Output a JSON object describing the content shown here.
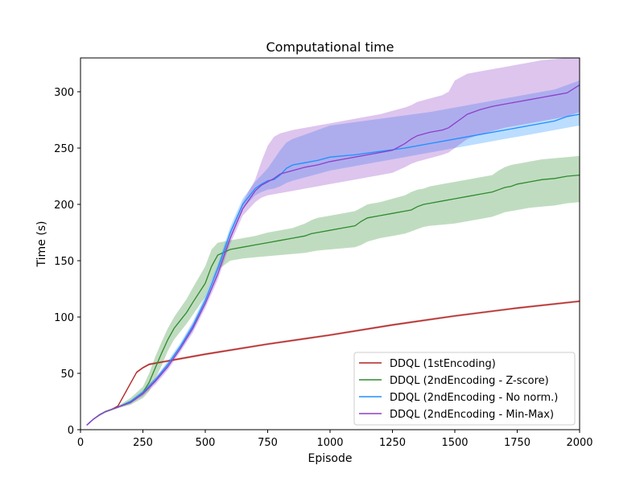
{
  "chart_data": {
    "type": "line",
    "title": "Computational time",
    "xlabel": "Episode",
    "ylabel": "Time (s)",
    "xlim": [
      0,
      2000
    ],
    "ylim": [
      0,
      330
    ],
    "xticks": [
      0,
      250,
      500,
      750,
      1000,
      1250,
      1500,
      1750,
      2000
    ],
    "yticks": [
      0,
      50,
      100,
      150,
      200,
      250,
      300
    ],
    "grid": false,
    "legend_position": "lower-right",
    "series": [
      {
        "name": "DDQL (1stEncoding)",
        "color": "#b22222",
        "x": [
          25,
          50,
          75,
          100,
          125,
          150,
          175,
          200,
          225,
          250,
          275,
          300,
          350,
          400,
          500,
          750,
          1000,
          1250,
          1500,
          1750,
          2000
        ],
        "y": [
          4,
          9,
          13,
          16,
          18,
          21,
          31,
          41,
          51,
          55,
          58,
          59,
          61,
          63,
          67,
          76,
          84,
          93,
          101,
          108,
          114
        ],
        "lower": [
          3.5,
          8.5,
          12.5,
          15.5,
          17.5,
          20.5,
          30,
          40,
          50,
          54,
          57,
          58,
          60,
          62,
          66,
          75,
          83,
          92,
          100,
          107,
          113
        ],
        "upper": [
          4.5,
          9.5,
          13.5,
          16.5,
          18.5,
          21.5,
          32,
          42,
          52,
          56,
          59,
          60,
          62,
          64,
          68,
          77,
          85,
          94,
          102,
          109,
          115
        ]
      },
      {
        "name": "DDQL (2ndEncoding - Z-score)",
        "color": "#2e8b2e",
        "x": [
          25,
          50,
          75,
          100,
          125,
          150,
          200,
          250,
          275,
          300,
          325,
          350,
          375,
          400,
          425,
          450,
          500,
          525,
          550,
          600,
          650,
          700,
          750,
          800,
          850,
          900,
          925,
          950,
          1000,
          1050,
          1100,
          1125,
          1150,
          1200,
          1250,
          1300,
          1325,
          1350,
          1375,
          1400,
          1450,
          1500,
          1550,
          1600,
          1650,
          1675,
          1700,
          1725,
          1750,
          1800,
          1850,
          1900,
          1950,
          2000
        ],
        "y": [
          4,
          9,
          13,
          16,
          18,
          20,
          25,
          33,
          42,
          55,
          68,
          80,
          90,
          97,
          104,
          113,
          130,
          145,
          155,
          160,
          162,
          164,
          166,
          168,
          170,
          172,
          174,
          175,
          177,
          179,
          181,
          185,
          188,
          190,
          192,
          194,
          195,
          198,
          200,
          201,
          203,
          205,
          207,
          209,
          211,
          213,
          215,
          216,
          218,
          220,
          222,
          223,
          225,
          226
        ],
        "lower": [
          3.5,
          8.5,
          12,
          15,
          17,
          19,
          22,
          28,
          34,
          45,
          57,
          70,
          80,
          87,
          94,
          102,
          118,
          132,
          142,
          150,
          152,
          153,
          154,
          155,
          156,
          157,
          158,
          159,
          160,
          161,
          162,
          164,
          167,
          170,
          172,
          174,
          176,
          178,
          180,
          181,
          182,
          183,
          185,
          187,
          189,
          191,
          193,
          194,
          195,
          197,
          198,
          199,
          201,
          202
        ],
        "upper": [
          4.5,
          9.5,
          14,
          17,
          19,
          21,
          28,
          38,
          50,
          65,
          78,
          90,
          100,
          108,
          116,
          126,
          145,
          160,
          166,
          168,
          170,
          172,
          175,
          177,
          179,
          183,
          186,
          188,
          190,
          192,
          194,
          197,
          200,
          202,
          205,
          208,
          211,
          213,
          214,
          216,
          218,
          220,
          222,
          224,
          226,
          230,
          233,
          235,
          236,
          238,
          240,
          241,
          242,
          243
        ]
      },
      {
        "name": "DDQL (2ndEncoding - No norm.)",
        "color": "#1e90ff",
        "x": [
          25,
          50,
          75,
          100,
          125,
          150,
          200,
          250,
          300,
          350,
          400,
          450,
          500,
          550,
          600,
          650,
          700,
          725,
          750,
          775,
          800,
          825,
          850,
          900,
          950,
          1000,
          1100,
          1200,
          1300,
          1400,
          1500,
          1600,
          1700,
          1800,
          1900,
          1950,
          2000
        ],
        "y": [
          4,
          9,
          13,
          16,
          18,
          20,
          25,
          33,
          44,
          58,
          74,
          92,
          115,
          143,
          175,
          200,
          214,
          218,
          221,
          222,
          226,
          232,
          235,
          237,
          239,
          242,
          244,
          247,
          250,
          254,
          258,
          262,
          266,
          270,
          274,
          278,
          280
        ],
        "lower": [
          3.5,
          8.5,
          12.5,
          15.5,
          17.5,
          19.5,
          24,
          31,
          42,
          55,
          71,
          88,
          111,
          139,
          171,
          196,
          208,
          211,
          213,
          214,
          216,
          219,
          221,
          224,
          227,
          230,
          234,
          238,
          242,
          246,
          250,
          254,
          258,
          262,
          266,
          268,
          270
        ],
        "upper": [
          4.5,
          9.5,
          13.5,
          16.5,
          18.5,
          20.5,
          26,
          35,
          46,
          61,
          77,
          96,
          119,
          147,
          180,
          205,
          220,
          226,
          232,
          240,
          248,
          255,
          258,
          262,
          266,
          270,
          273,
          276,
          279,
          282,
          286,
          290,
          294,
          298,
          302,
          306,
          310
        ]
      },
      {
        "name": "DDQL (2ndEncoding - Min-Max)",
        "color": "#8e3fc7",
        "x": [
          25,
          50,
          75,
          100,
          125,
          150,
          200,
          250,
          300,
          350,
          400,
          450,
          500,
          550,
          600,
          650,
          700,
          725,
          750,
          775,
          800,
          850,
          900,
          950,
          1000,
          1050,
          1100,
          1150,
          1200,
          1250,
          1300,
          1325,
          1350,
          1400,
          1450,
          1475,
          1500,
          1525,
          1550,
          1600,
          1650,
          1700,
          1750,
          1800,
          1850,
          1900,
          1950,
          2000
        ],
        "y": [
          4,
          9,
          13,
          16,
          18,
          20,
          24,
          32,
          43,
          56,
          72,
          90,
          112,
          138,
          170,
          196,
          212,
          217,
          220,
          223,
          227,
          230,
          233,
          235,
          238,
          240,
          242,
          244,
          246,
          248,
          254,
          258,
          261,
          264,
          266,
          268,
          272,
          276,
          280,
          284,
          287,
          289,
          291,
          293,
          295,
          297,
          299,
          306
        ],
        "lower": [
          3.5,
          8.5,
          12.5,
          15.5,
          17.5,
          19.5,
          23,
          30,
          40,
          53,
          69,
          86,
          108,
          133,
          165,
          190,
          202,
          206,
          208,
          209,
          210,
          212,
          214,
          216,
          218,
          220,
          222,
          224,
          226,
          228,
          233,
          236,
          238,
          241,
          244,
          246,
          250,
          254,
          258,
          262,
          265,
          268,
          270,
          272,
          274,
          276,
          278,
          282
        ],
        "upper": [
          4.5,
          9.5,
          13.5,
          16.5,
          18.5,
          20.5,
          25,
          34,
          46,
          59,
          75,
          94,
          116,
          143,
          176,
          202,
          222,
          238,
          252,
          260,
          263,
          266,
          268,
          270,
          272,
          274,
          276,
          278,
          280,
          283,
          286,
          288,
          291,
          294,
          297,
          300,
          310,
          313,
          316,
          318,
          320,
          322,
          324,
          326,
          328,
          329,
          330,
          330
        ]
      }
    ]
  }
}
